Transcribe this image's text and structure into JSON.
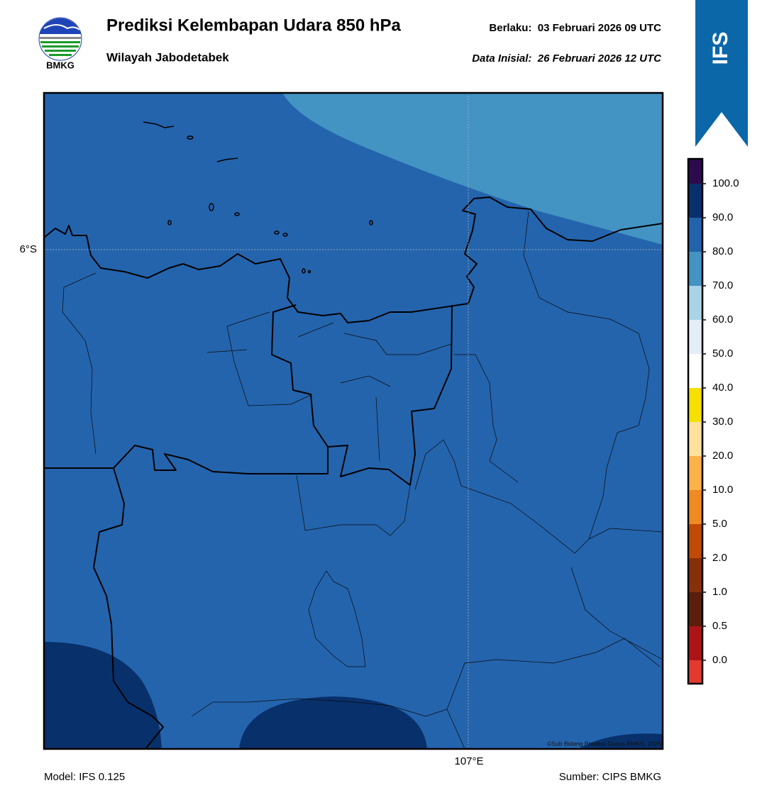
{
  "header": {
    "title": "Prediksi Kelembapan Udara 850 hPa",
    "subtitle": "Wilayah Jabodetabek",
    "valid": "Berlaku:  03 Februari 2026 09 UTC",
    "init": "Data Inisial:  26 Februari 2026 12 UTC",
    "logo_text": "BMKG",
    "badge": "IFS"
  },
  "map": {
    "lat_label": "6°S",
    "lon_label": "107°E",
    "credit": "©Sub Bidang Prediksi Cuaca BMKG, 2026"
  },
  "colorbar": {
    "colors": [
      "#e23a30",
      "#ad1419",
      "#5c1e0c",
      "#86300a",
      "#c04a06",
      "#f08a22",
      "#fbb24a",
      "#fde19c",
      "#f5e000",
      "#ffffff",
      "#e3eef6",
      "#a9d4e8",
      "#4393c3",
      "#2164ac",
      "#08306b",
      "#2d0a4e"
    ],
    "ticks": [
      {
        "value": 0,
        "label": "0.0"
      },
      {
        "value": 0.5,
        "label": "0.5"
      },
      {
        "value": 1,
        "label": "1.0"
      },
      {
        "value": 2,
        "label": "2.0"
      },
      {
        "value": 5,
        "label": "5.0"
      },
      {
        "value": 10,
        "label": "10.0"
      },
      {
        "value": 20,
        "label": "20.0"
      },
      {
        "value": 30,
        "label": "30.0"
      },
      {
        "value": 40,
        "label": "40.0"
      },
      {
        "value": 50,
        "label": "50.0"
      },
      {
        "value": 60,
        "label": "60.0"
      },
      {
        "value": 70,
        "label": "70.0"
      },
      {
        "value": 80,
        "label": "80.0"
      },
      {
        "value": 90,
        "label": "90.0"
      },
      {
        "value": 100,
        "label": "100.0"
      }
    ]
  },
  "footer": {
    "model": "Model: IFS 0.125",
    "source": "Sumber: CIPS BMKG"
  }
}
